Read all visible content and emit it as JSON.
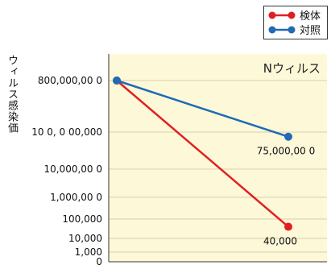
{
  "chart_data": {
    "type": "line",
    "title": "Nウィルス",
    "ylabel": "ウィルス感染価",
    "xlabel": "",
    "y_ticks": [
      "800,000,00 0",
      "10 0, 0 00,000",
      "10,000,00 0",
      "1,000,00 0",
      "100,000",
      "10,000",
      "1,000",
      "0"
    ],
    "x": [
      0,
      1
    ],
    "series": [
      {
        "name": "検体",
        "color": "#e02020",
        "values": [
          800000000,
          40000
        ],
        "end_label": "40,000"
      },
      {
        "name": "対照",
        "color": "#1f6bb5",
        "values": [
          800000000,
          75000000
        ],
        "end_label": "75,000,00 0"
      }
    ],
    "grid": true,
    "background": "#fdf8d8",
    "legend_position": "top-right"
  }
}
